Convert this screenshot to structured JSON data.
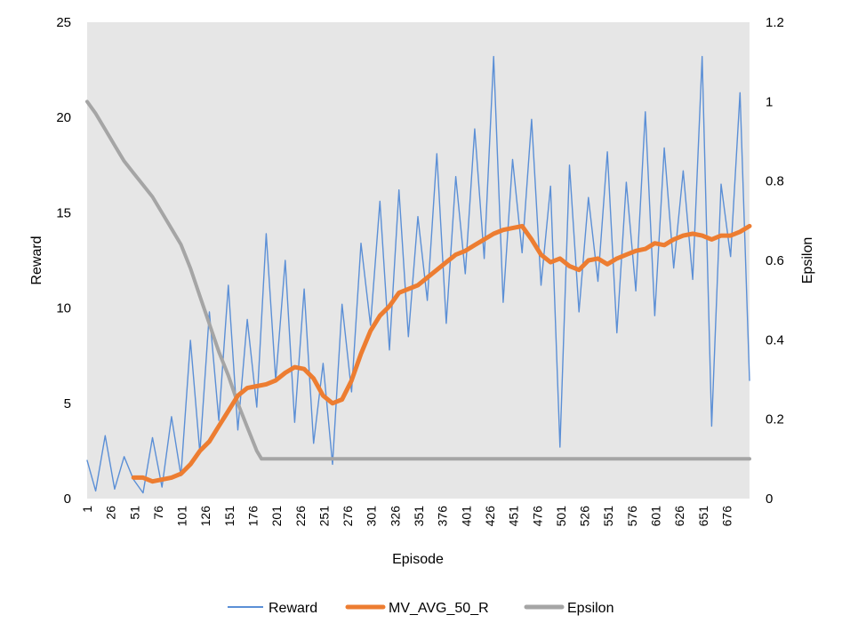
{
  "chart_data": {
    "type": "line",
    "xlabel": "Episode",
    "ylabel": "Reward",
    "y2label": "Epsilon",
    "x_range": [
      1,
      700
    ],
    "ylim": [
      0,
      25
    ],
    "y2lim": [
      0,
      1.2
    ],
    "yticks": [
      "0",
      "5",
      "10",
      "15",
      "20",
      "25"
    ],
    "y2ticks": [
      "0",
      "0.2",
      "0.4",
      "0.6",
      "0.8",
      "1",
      "1.2"
    ],
    "xticks": [
      "1",
      "26",
      "51",
      "76",
      "101",
      "126",
      "151",
      "176",
      "201",
      "226",
      "251",
      "276",
      "301",
      "326",
      "351",
      "376",
      "401",
      "426",
      "451",
      "476",
      "501",
      "526",
      "551",
      "576",
      "601",
      "626",
      "651",
      "676"
    ],
    "grid": false,
    "plot_background": "#e6e6e6",
    "legend": {
      "position": "bottom",
      "entries": [
        "Reward",
        "MV_AVG_50_R",
        "Epsilon"
      ]
    },
    "series": [
      {
        "name": "Reward",
        "axis": "left",
        "color": "#5b8fd6",
        "x": [
          1,
          10,
          20,
          30,
          40,
          50,
          60,
          70,
          80,
          90,
          100,
          110,
          120,
          130,
          140,
          150,
          160,
          170,
          180,
          190,
          200,
          210,
          220,
          230,
          240,
          250,
          260,
          270,
          280,
          290,
          300,
          310,
          320,
          330,
          340,
          350,
          360,
          370,
          380,
          390,
          400,
          410,
          420,
          430,
          440,
          450,
          460,
          470,
          480,
          490,
          500,
          510,
          520,
          530,
          540,
          550,
          560,
          570,
          580,
          590,
          600,
          610,
          620,
          630,
          640,
          650,
          660,
          670,
          680,
          690,
          700
        ],
        "y": [
          2.0,
          0.4,
          3.3,
          0.5,
          2.2,
          1.0,
          0.3,
          3.2,
          0.6,
          4.3,
          1.2,
          8.3,
          2.4,
          9.8,
          4.1,
          11.2,
          3.6,
          9.4,
          4.8,
          13.9,
          6.2,
          12.5,
          4.0,
          11.0,
          2.9,
          7.1,
          1.8,
          10.2,
          5.6,
          13.4,
          9.1,
          15.6,
          7.8,
          16.2,
          8.5,
          14.8,
          10.4,
          18.1,
          9.2,
          16.9,
          11.8,
          19.4,
          12.6,
          23.2,
          10.3,
          17.8,
          12.9,
          19.9,
          11.2,
          16.4,
          2.7,
          17.5,
          9.8,
          15.8,
          11.4,
          18.2,
          8.7,
          16.6,
          10.9,
          20.3,
          9.6,
          18.4,
          12.1,
          17.2,
          11.5,
          23.2,
          3.8,
          16.5,
          12.7,
          21.3,
          6.2
        ]
      },
      {
        "name": "MV_AVG_50_R",
        "axis": "left",
        "color": "#ed7d31",
        "x": [
          50,
          60,
          70,
          80,
          90,
          100,
          110,
          120,
          130,
          140,
          150,
          160,
          170,
          180,
          190,
          200,
          210,
          220,
          230,
          240,
          250,
          260,
          270,
          280,
          290,
          300,
          310,
          320,
          330,
          340,
          350,
          360,
          370,
          380,
          390,
          400,
          410,
          420,
          430,
          440,
          450,
          460,
          470,
          480,
          490,
          500,
          510,
          520,
          530,
          540,
          550,
          560,
          570,
          580,
          590,
          600,
          610,
          620,
          630,
          640,
          650,
          660,
          670,
          680,
          690,
          700
        ],
        "y": [
          1.1,
          1.1,
          0.9,
          1.0,
          1.1,
          1.3,
          1.8,
          2.5,
          3.0,
          3.8,
          4.6,
          5.4,
          5.8,
          5.9,
          6.0,
          6.2,
          6.6,
          6.9,
          6.8,
          6.3,
          5.4,
          5.0,
          5.2,
          6.2,
          7.6,
          8.8,
          9.6,
          10.1,
          10.8,
          11.0,
          11.2,
          11.6,
          12.0,
          12.4,
          12.8,
          13.0,
          13.3,
          13.6,
          13.9,
          14.1,
          14.2,
          14.3,
          13.6,
          12.8,
          12.4,
          12.6,
          12.2,
          12.0,
          12.5,
          12.6,
          12.3,
          12.6,
          12.8,
          13.0,
          13.1,
          13.4,
          13.3,
          13.6,
          13.8,
          13.9,
          13.8,
          13.6,
          13.8,
          13.8,
          14.0,
          14.3
        ]
      },
      {
        "name": "Epsilon",
        "axis": "right",
        "color": "#a5a5a5",
        "x": [
          1,
          10,
          20,
          30,
          40,
          50,
          60,
          70,
          80,
          90,
          100,
          110,
          120,
          130,
          140,
          150,
          160,
          170,
          180,
          185,
          190,
          200,
          300,
          400,
          500,
          600,
          700
        ],
        "y": [
          1.0,
          0.97,
          0.93,
          0.89,
          0.85,
          0.82,
          0.79,
          0.76,
          0.72,
          0.68,
          0.64,
          0.58,
          0.51,
          0.44,
          0.37,
          0.31,
          0.24,
          0.18,
          0.12,
          0.1,
          0.1,
          0.1,
          0.1,
          0.1,
          0.1,
          0.1,
          0.1
        ]
      }
    ]
  }
}
